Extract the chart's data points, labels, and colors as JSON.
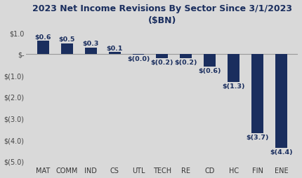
{
  "title": "2023 Net Income Revisions By Sector Since 3/1/2023\n($BN)",
  "categories": [
    "MAT",
    "COMM",
    "IND",
    "CS",
    "UTL",
    "TECH",
    "RE",
    "CD",
    "HC",
    "FIN",
    "ENE"
  ],
  "values": [
    0.6,
    0.5,
    0.3,
    0.1,
    -0.03,
    -0.2,
    -0.2,
    -0.6,
    -1.3,
    -3.7,
    -4.4
  ],
  "bar_color": "#1a2e5e",
  "background_color": "#d9d9d9",
  "ylim": [
    -5.2,
    1.3
  ],
  "yticks": [
    1.0,
    0.0,
    -1.0,
    -2.0,
    -3.0,
    -4.0,
    -5.0
  ],
  "ytick_labels": [
    "$1.0",
    "$-",
    "$(1.0)",
    "$(2.0)",
    "$(3.0)",
    "$(4.0)",
    "$(5.0)"
  ],
  "bar_labels": [
    "$0.6",
    "$0.5",
    "$0.3",
    "$0.1",
    "$(0.0)",
    "$(0.2)",
    "$(0.2)",
    "$(0.6)",
    "$(1.3)",
    "$(3.7)",
    "$(4.4)"
  ],
  "title_fontsize": 9,
  "label_fontsize": 6.8,
  "tick_fontsize": 7,
  "ytick_fontsize": 7
}
